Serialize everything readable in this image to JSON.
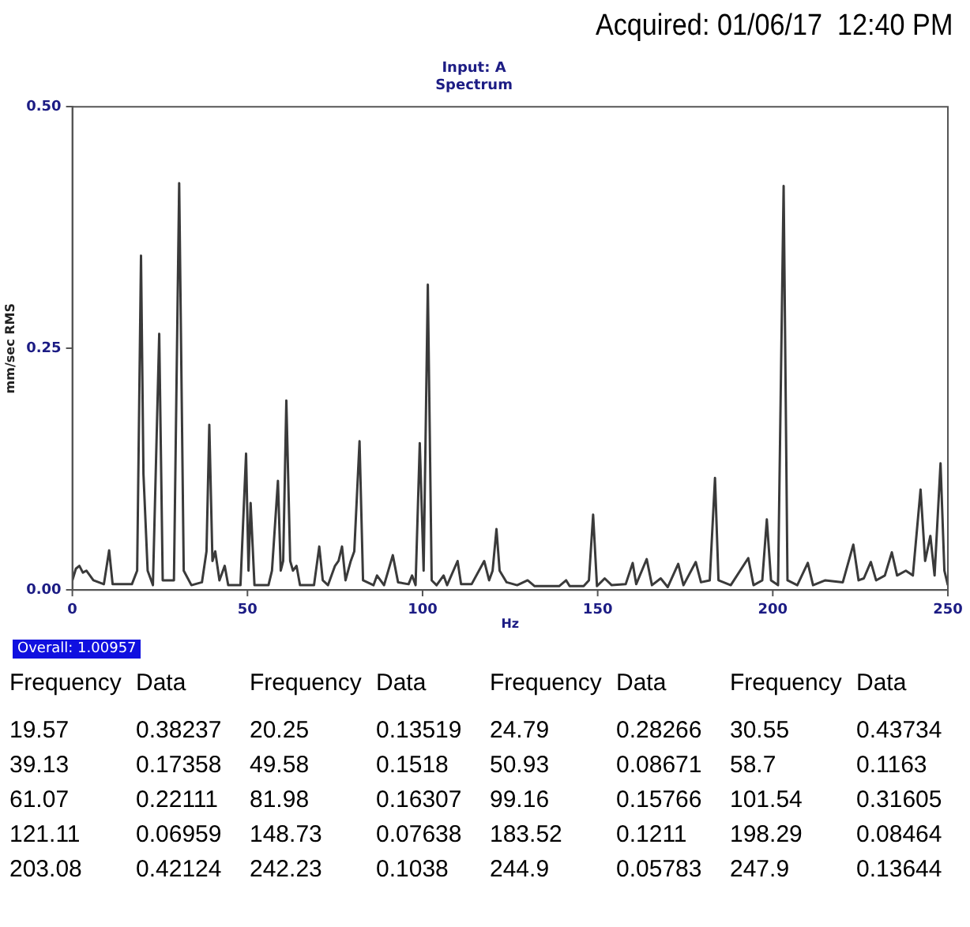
{
  "chart_data": {
    "type": "line",
    "title": "Input: A",
    "subtitle": "Spectrum",
    "xlabel": "Hz",
    "ylabel": "mm/sec RMS",
    "color": "#3a3a3a",
    "x": [
      0,
      1,
      2,
      3,
      4,
      6,
      9,
      10.5,
      11.5,
      17,
      18.5,
      19.6,
      20.3,
      21.5,
      23,
      24.8,
      25.8,
      29,
      30.5,
      31.8,
      34,
      37,
      38.3,
      39.1,
      40,
      40.8,
      42,
      43.5,
      44.5,
      48,
      49.6,
      50.3,
      50.9,
      52,
      56,
      57,
      58.7,
      59.5,
      60.2,
      61.1,
      62.2,
      63,
      64,
      65,
      69,
      70.5,
      71.5,
      73,
      75,
      76,
      77,
      78,
      79.5,
      80.5,
      82,
      83,
      86,
      87,
      89,
      91.5,
      93,
      96,
      97,
      98,
      99.2,
      100.3,
      101.5,
      102.6,
      104,
      106,
      107,
      110,
      111,
      114,
      117.6,
      119,
      120,
      121.1,
      122,
      124,
      127,
      130,
      132,
      139,
      141,
      142,
      146,
      147.5,
      148.7,
      149.8,
      152,
      154,
      158,
      160,
      161,
      164,
      165.5,
      168,
      170,
      173,
      174.5,
      178,
      179.5,
      182,
      183.5,
      184.5,
      188,
      193,
      194.5,
      197,
      198.3,
      199.5,
      201.5,
      203.1,
      204.2,
      207,
      210,
      211.5,
      215,
      220,
      223,
      224.5,
      226,
      228,
      229.5,
      232,
      234,
      235.5,
      238,
      240,
      242.2,
      243.5,
      245,
      246.2,
      247.9,
      249,
      250
    ],
    "values": [
      0.01,
      0.022,
      0.025,
      0.018,
      0.02,
      0.01,
      0.006,
      0.041,
      0.006,
      0.006,
      0.02,
      0.346,
      0.12,
      0.02,
      0.005,
      0.265,
      0.01,
      0.01,
      0.421,
      0.02,
      0.005,
      0.008,
      0.04,
      0.171,
      0.03,
      0.04,
      0.01,
      0.025,
      0.005,
      0.005,
      0.141,
      0.02,
      0.09,
      0.005,
      0.005,
      0.02,
      0.113,
      0.02,
      0.03,
      0.196,
      0.03,
      0.02,
      0.025,
      0.005,
      0.005,
      0.045,
      0.01,
      0.005,
      0.025,
      0.03,
      0.045,
      0.01,
      0.03,
      0.04,
      0.154,
      0.01,
      0.005,
      0.015,
      0.005,
      0.036,
      0.008,
      0.006,
      0.015,
      0.005,
      0.152,
      0.02,
      0.316,
      0.01,
      0.005,
      0.015,
      0.005,
      0.03,
      0.006,
      0.006,
      0.03,
      0.01,
      0.02,
      0.063,
      0.02,
      0.008,
      0.005,
      0.01,
      0.004,
      0.004,
      0.01,
      0.004,
      0.004,
      0.01,
      0.078,
      0.004,
      0.012,
      0.005,
      0.006,
      0.028,
      0.006,
      0.032,
      0.005,
      0.012,
      0.003,
      0.027,
      0.005,
      0.029,
      0.008,
      0.01,
      0.116,
      0.01,
      0.005,
      0.033,
      0.005,
      0.01,
      0.073,
      0.01,
      0.005,
      0.418,
      0.01,
      0.005,
      0.028,
      0.005,
      0.01,
      0.008,
      0.047,
      0.01,
      0.012,
      0.029,
      0.01,
      0.015,
      0.039,
      0.015,
      0.02,
      0.015,
      0.104,
      0.03,
      0.056,
      0.015,
      0.131,
      0.02,
      0.005
    ],
    "xlim": [
      0,
      250
    ],
    "xticks": [
      0,
      50,
      100,
      150,
      200,
      250
    ],
    "ylim": [
      0,
      0.5
    ],
    "yticks": [
      {
        "value": 0,
        "label": "0.00"
      },
      {
        "value": 0.25,
        "label": "0.25"
      },
      {
        "value": 0.5,
        "label": "0.50"
      }
    ],
    "annotations": [
      "Acquired: 01/06/17  12:40 PM",
      "Overall: 1.00957",
      "Frequency",
      "Data",
      "Frequency",
      "Data",
      "Frequency",
      "Data",
      "Frequency",
      "Data",
      "19.57",
      "0.38237",
      "20.25",
      "0.13519",
      "24.79",
      "0.28266",
      "30.55",
      "0.43734",
      "39.13",
      "0.17358",
      "49.58",
      "0.1518",
      "50.93",
      "0.08671",
      "58.7",
      "0.1163",
      "61.07",
      "0.22111",
      "81.98",
      "0.16307",
      "99.16",
      "0.15766",
      "101.54",
      "0.31605",
      "121.11",
      "0.06959",
      "148.73",
      "0.07638",
      "183.52",
      "0.1211",
      "198.29",
      "0.08464",
      "203.08",
      "0.42124",
      "242.23",
      "0.1038",
      "244.9",
      "0.05783",
      "247.9",
      "0.13644"
    ]
  }
}
